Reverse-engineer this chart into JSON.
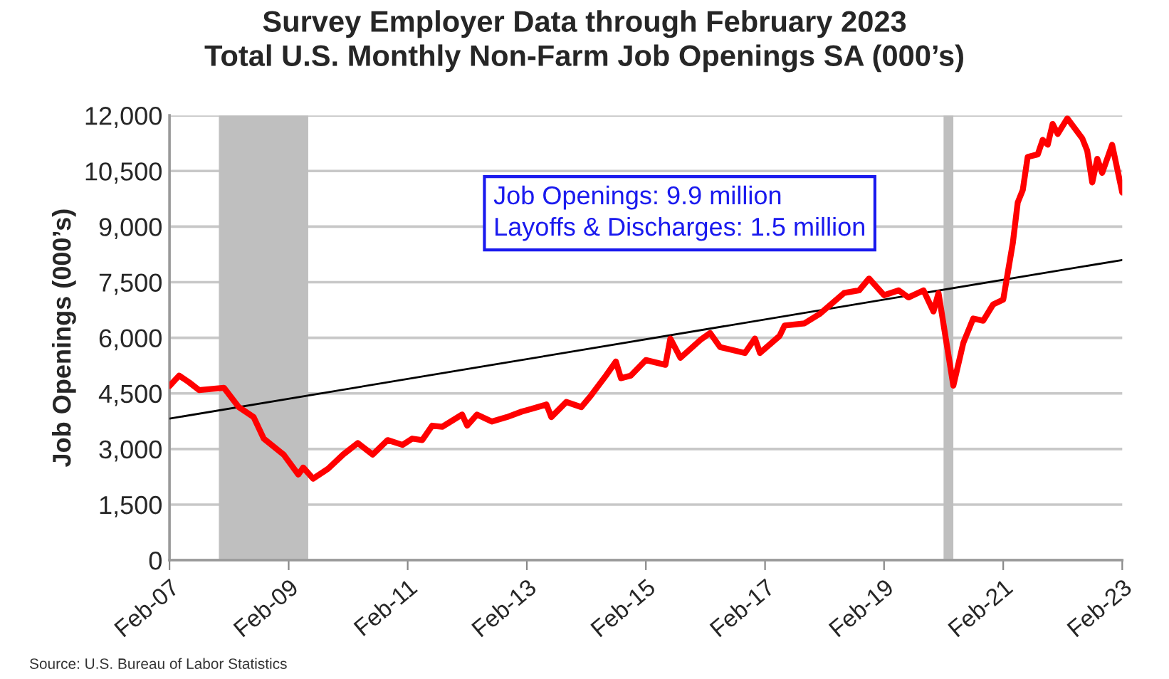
{
  "chart_data": {
    "type": "line",
    "title": "Survey Employer Data through February 2023\nTotal U.S. Monthly Non-Farm Job Openings SA (000’s)",
    "ylabel": "Job Openings (000’s)",
    "annotations": [
      "Job Openings: 9.9 million\nLayoffs & Discharges: 1.5 million",
      "Source: U.S. Bureau of Labor Statistics"
    ],
    "xlim": [
      "2007-02",
      "2023-02"
    ],
    "xticks": [
      {
        "value": "2007-02",
        "label": "Feb-07"
      },
      {
        "value": "2009-02",
        "label": "Feb-09"
      },
      {
        "value": "2011-02",
        "label": "Feb-11"
      },
      {
        "value": "2013-02",
        "label": "Feb-13"
      },
      {
        "value": "2015-02",
        "label": "Feb-15"
      },
      {
        "value": "2017-02",
        "label": "Feb-17"
      },
      {
        "value": "2019-02",
        "label": "Feb-19"
      },
      {
        "value": "2021-02",
        "label": "Feb-21"
      },
      {
        "value": "2023-02",
        "label": "Feb-23"
      }
    ],
    "ylim": [
      0,
      12000
    ],
    "yticks": [
      {
        "value": 0,
        "label": "0"
      },
      {
        "value": 1500,
        "label": "1,500"
      },
      {
        "value": 3000,
        "label": "3,000"
      },
      {
        "value": 4500,
        "label": "4,500"
      },
      {
        "value": 6000,
        "label": "6,000"
      },
      {
        "value": 7500,
        "label": "7,500"
      },
      {
        "value": 9000,
        "label": "9,000"
      },
      {
        "value": 10500,
        "label": "10,500"
      },
      {
        "value": 12000,
        "label": "12,000"
      }
    ],
    "grid": "y",
    "bands": [
      {
        "axis": "x",
        "from": "2007-12",
        "to": "2009-06",
        "color": "#bfbfbf"
      },
      {
        "axis": "x",
        "from": "2020-02",
        "to": "2020-04",
        "color": "#bfbfbf"
      }
    ],
    "series": [
      {
        "color": "#ff0000",
        "x": [
          "2007-02",
          "2007-04",
          "2007-06",
          "2007-08",
          "2008-01",
          "2008-04",
          "2008-07",
          "2008-09",
          "2009-01",
          "2009-04",
          "2009-05",
          "2009-07",
          "2009-10",
          "2010-01",
          "2010-04",
          "2010-07",
          "2010-10",
          "2011-01",
          "2011-03",
          "2011-05",
          "2011-07",
          "2011-09",
          "2012-01",
          "2012-02",
          "2012-04",
          "2012-07",
          "2012-10",
          "2013-01",
          "2013-03",
          "2013-06",
          "2013-07",
          "2013-10",
          "2014-01",
          "2014-03",
          "2014-06",
          "2014-08",
          "2014-09",
          "2014-11",
          "2015-02",
          "2015-06",
          "2015-07",
          "2015-09",
          "2016-01",
          "2016-03",
          "2016-05",
          "2016-10",
          "2016-12",
          "2017-01",
          "2017-05",
          "2017-06",
          "2017-10",
          "2018-01",
          "2018-06",
          "2018-09",
          "2018-11",
          "2019-02",
          "2019-05",
          "2019-07",
          "2019-10",
          "2019-12",
          "2020-01",
          "2020-04",
          "2020-06",
          "2020-08",
          "2020-10",
          "2020-12",
          "2021-02",
          "2021-04",
          "2021-05",
          "2021-06",
          "2021-07",
          "2021-09",
          "2021-10",
          "2021-11",
          "2021-12",
          "2022-01",
          "2022-03",
          "2022-06",
          "2022-07",
          "2022-08",
          "2022-09",
          "2022-10",
          "2022-12",
          "2023-02"
        ],
        "values": [
          4700,
          4980,
          4800,
          4590,
          4650,
          4130,
          3860,
          3280,
          2850,
          2310,
          2500,
          2200,
          2470,
          2850,
          3160,
          2850,
          3240,
          3110,
          3280,
          3240,
          3630,
          3600,
          3930,
          3630,
          3930,
          3740,
          3860,
          4010,
          4080,
          4200,
          3860,
          4270,
          4130,
          4440,
          4980,
          5360,
          4910,
          4980,
          5400,
          5270,
          5980,
          5460,
          5940,
          6130,
          5750,
          5590,
          5980,
          5590,
          6050,
          6330,
          6390,
          6640,
          7210,
          7280,
          7600,
          7150,
          7280,
          7090,
          7280,
          6710,
          7210,
          4710,
          5860,
          6520,
          6460,
          6900,
          7030,
          8560,
          9650,
          9990,
          10880,
          10950,
          11340,
          11210,
          11770,
          11500,
          11920,
          11380,
          11050,
          10190,
          10830,
          10450,
          11210,
          9920
        ]
      },
      {
        "type": "line",
        "color": "#000000",
        "x": [
          "2007-02",
          "2023-02"
        ],
        "values": [
          3820,
          8100
        ]
      }
    ]
  }
}
